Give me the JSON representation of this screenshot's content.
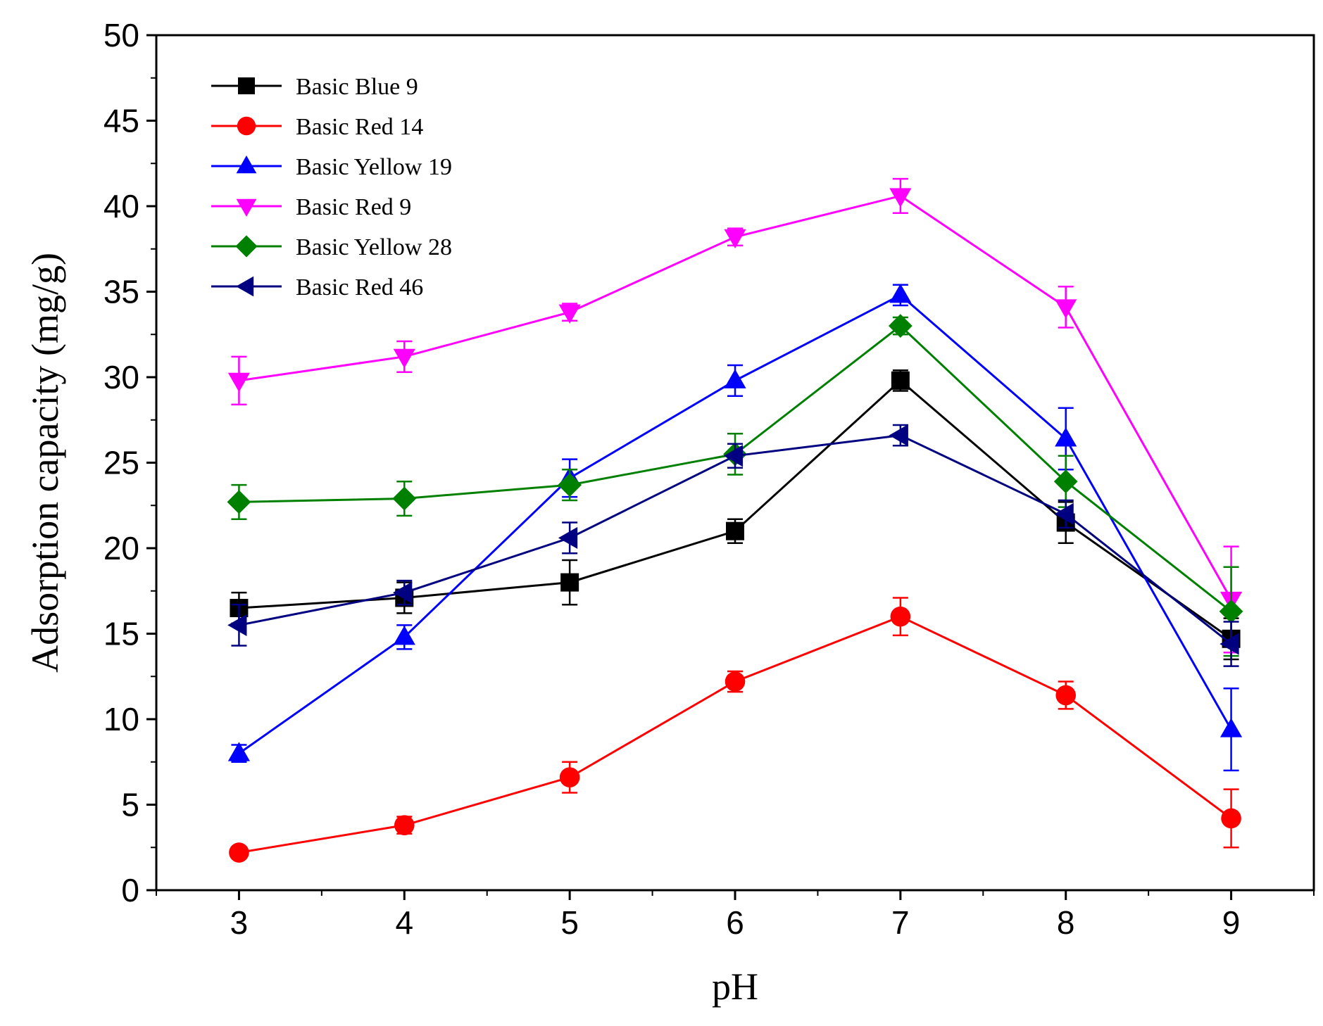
{
  "chart_data": {
    "type": "line",
    "title": "",
    "xlabel": "pH",
    "ylabel": "Adsorption capacity (mg/g)",
    "xlim": [
      2.5,
      9.5
    ],
    "ylim": [
      0,
      50
    ],
    "x": [
      3,
      4,
      5,
      6,
      7,
      8,
      9
    ],
    "xticks": [
      3,
      4,
      5,
      6,
      7,
      8,
      9
    ],
    "yticks": [
      0,
      5,
      10,
      15,
      20,
      25,
      30,
      35,
      40,
      45,
      50
    ],
    "grid": false,
    "legend_position": "top-left",
    "series": [
      {
        "name": "Basic Blue 9",
        "color": "#000000",
        "marker": "square",
        "values": [
          16.5,
          17.1,
          18.0,
          21.0,
          29.8,
          21.5,
          14.7
        ],
        "errors": [
          0.9,
          0.9,
          1.3,
          0.7,
          0.6,
          1.2,
          1.2
        ]
      },
      {
        "name": "Basic Red 14",
        "color": "#ff0000",
        "marker": "circle",
        "values": [
          2.2,
          3.8,
          6.6,
          12.2,
          16.0,
          11.4,
          4.2
        ],
        "errors": [
          0.3,
          0.5,
          0.9,
          0.6,
          1.1,
          0.8,
          1.7
        ]
      },
      {
        "name": "Basic Yellow 19",
        "color": "#0000ff",
        "marker": "triangle-up",
        "values": [
          8.0,
          14.8,
          24.1,
          29.8,
          34.8,
          26.4,
          9.4
        ],
        "errors": [
          0.5,
          0.7,
          1.1,
          0.9,
          0.6,
          1.8,
          2.4
        ]
      },
      {
        "name": "Basic Red 9",
        "color": "#ff00ff",
        "marker": "triangle-down",
        "values": [
          29.8,
          31.2,
          33.8,
          38.2,
          40.6,
          34.1,
          17.0
        ],
        "errors": [
          1.4,
          0.9,
          0.5,
          0.5,
          1.0,
          1.2,
          3.1
        ]
      },
      {
        "name": "Basic Yellow 28",
        "color": "#008000",
        "marker": "diamond",
        "values": [
          22.7,
          22.9,
          23.7,
          25.5,
          33.0,
          23.9,
          16.3
        ],
        "errors": [
          1.0,
          1.0,
          0.9,
          1.2,
          0.5,
          1.5,
          2.6
        ]
      },
      {
        "name": "Basic Red 46",
        "color": "#000080",
        "marker": "triangle-left",
        "values": [
          15.5,
          17.4,
          20.6,
          25.4,
          26.6,
          22.0,
          14.4
        ],
        "errors": [
          1.2,
          0.7,
          0.9,
          0.7,
          0.6,
          0.8,
          1.3
        ]
      }
    ]
  }
}
